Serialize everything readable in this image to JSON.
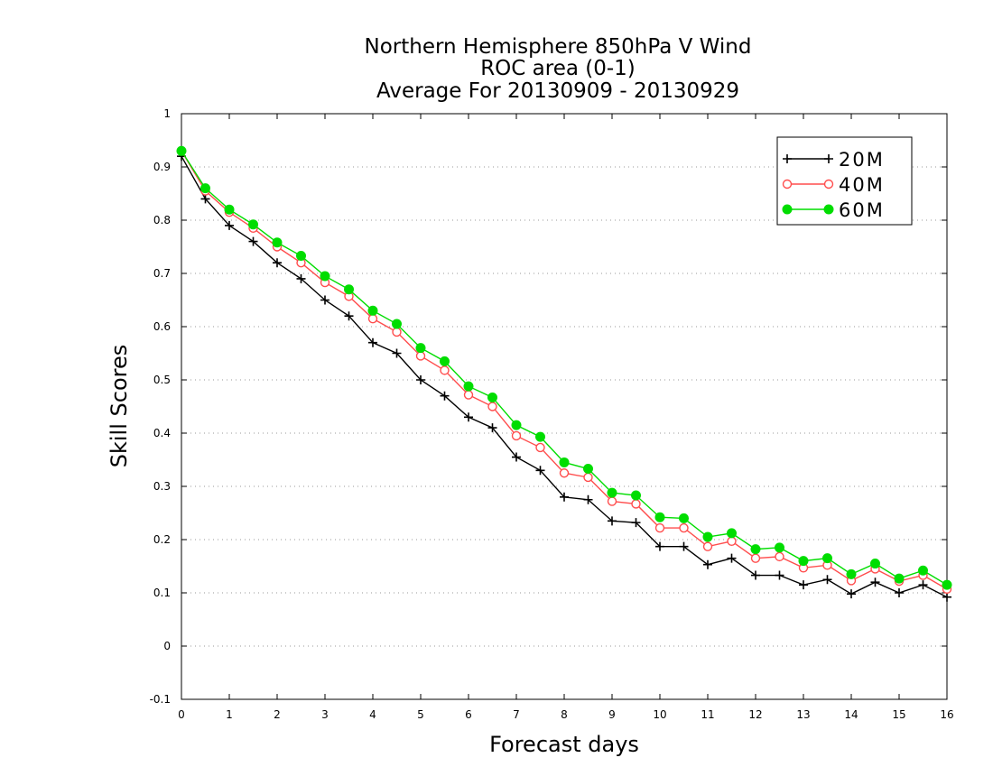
{
  "chart_data": {
    "type": "line",
    "title": [
      "Northern Hemisphere 850hPa V Wind",
      "ROC area (0-1)",
      "Average For 20130909 - 20130929"
    ],
    "xlabel": "Forecast days",
    "ylabel": "Skill Scores",
    "xlim": [
      0,
      16
    ],
    "ylim": [
      -0.1,
      1
    ],
    "xticks": [
      "0",
      "1",
      "2",
      "3",
      "4",
      "5",
      "6",
      "7",
      "8",
      "9",
      "10",
      "11",
      "12",
      "13",
      "14",
      "15",
      "16"
    ],
    "yticks": [
      "-0.1",
      "0",
      "0.1",
      "0.2",
      "0.3",
      "0.4",
      "0.5",
      "0.6",
      "0.7",
      "0.8",
      "0.9",
      "1"
    ],
    "grid": true,
    "legend_position": "top-right",
    "x": [
      0,
      0.5,
      1,
      1.5,
      2,
      2.5,
      3,
      3.5,
      4,
      4.5,
      5,
      5.5,
      6,
      6.5,
      7,
      7.5,
      8,
      8.5,
      9,
      9.5,
      10,
      10.5,
      11,
      11.5,
      12,
      12.5,
      13,
      13.5,
      14,
      14.5,
      15,
      15.5,
      16
    ],
    "series": [
      {
        "name": "20M",
        "color": "#000000",
        "marker": "plus",
        "values": [
          0.92,
          0.84,
          0.79,
          0.76,
          0.72,
          0.69,
          0.65,
          0.62,
          0.57,
          0.55,
          0.5,
          0.47,
          0.43,
          0.41,
          0.355,
          0.33,
          0.28,
          0.275,
          0.235,
          0.232,
          0.187,
          0.187,
          0.153,
          0.165,
          0.133,
          0.133,
          0.115,
          0.125,
          0.098,
          0.12,
          0.1,
          0.115,
          0.092
        ]
      },
      {
        "name": "40M",
        "color": "#ff4d4d",
        "marker": "open-circle",
        "values": [
          0.93,
          0.855,
          0.815,
          0.785,
          0.75,
          0.72,
          0.683,
          0.657,
          0.615,
          0.59,
          0.545,
          0.518,
          0.472,
          0.45,
          0.395,
          0.373,
          0.325,
          0.317,
          0.272,
          0.267,
          0.222,
          0.222,
          0.187,
          0.197,
          0.165,
          0.168,
          0.147,
          0.152,
          0.123,
          0.145,
          0.122,
          0.133,
          0.107
        ]
      },
      {
        "name": "60M",
        "color": "#00dd00",
        "marker": "filled-circle",
        "values": [
          0.93,
          0.86,
          0.82,
          0.792,
          0.758,
          0.733,
          0.695,
          0.67,
          0.63,
          0.605,
          0.56,
          0.535,
          0.488,
          0.467,
          0.415,
          0.393,
          0.345,
          0.333,
          0.288,
          0.283,
          0.242,
          0.24,
          0.205,
          0.212,
          0.182,
          0.185,
          0.16,
          0.165,
          0.135,
          0.155,
          0.127,
          0.142,
          0.115
        ]
      }
    ]
  }
}
